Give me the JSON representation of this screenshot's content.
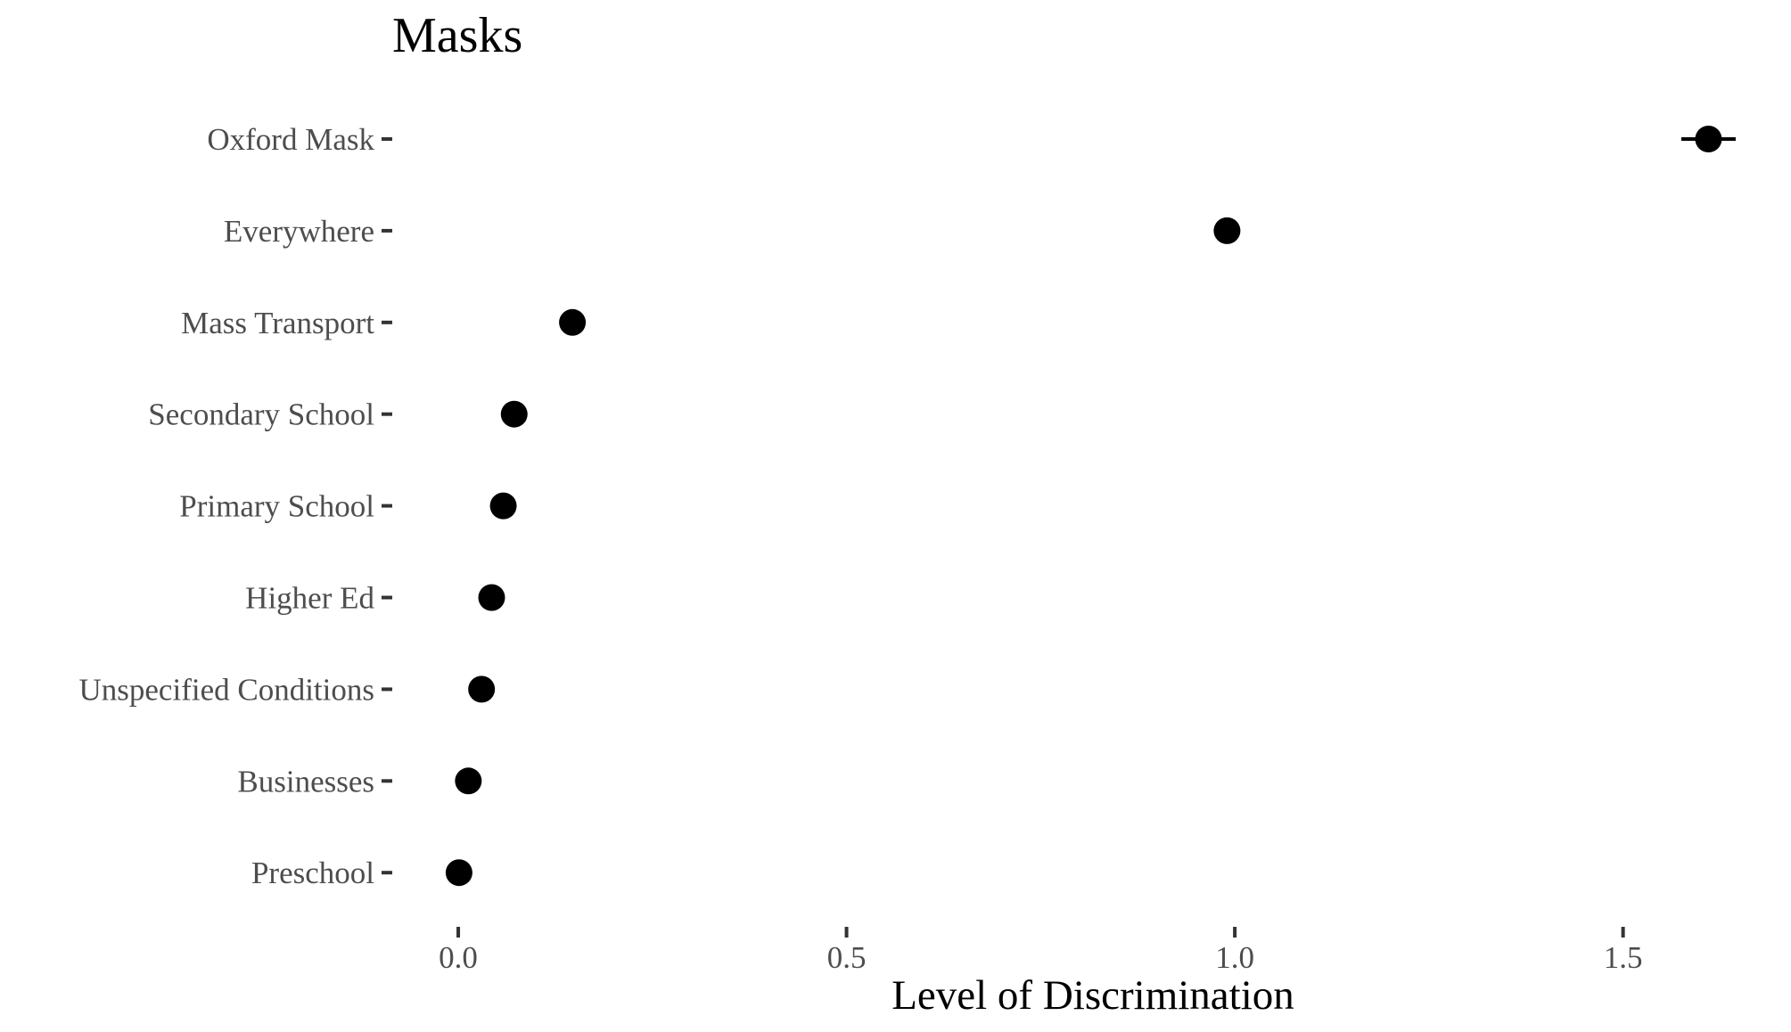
{
  "chart_data": {
    "type": "scatter",
    "title": "Masks",
    "xlabel": "Level of Discrimination",
    "ylabel": "",
    "xlim": [
      -0.085,
      1.66
    ],
    "xticks": [
      0.0,
      0.5,
      1.0,
      1.5
    ],
    "xtick_labels": [
      "0.0",
      "0.5",
      "1.0",
      "1.5"
    ],
    "categories": [
      "Oxford Mask",
      "Everywhere",
      "Mass Transport",
      "Secondary School",
      "Primary School",
      "Higher Ed",
      "Unspecified Conditions",
      "Businesses",
      "Preschool"
    ],
    "values": [
      1.61,
      0.99,
      0.147,
      0.072,
      0.058,
      0.043,
      0.03,
      0.013,
      0.001
    ],
    "errors": [
      [
        1.575,
        1.645
      ],
      null,
      null,
      null,
      null,
      null,
      null,
      null,
      null
    ],
    "grid": false,
    "legend": "none",
    "point_color": "#000000"
  }
}
